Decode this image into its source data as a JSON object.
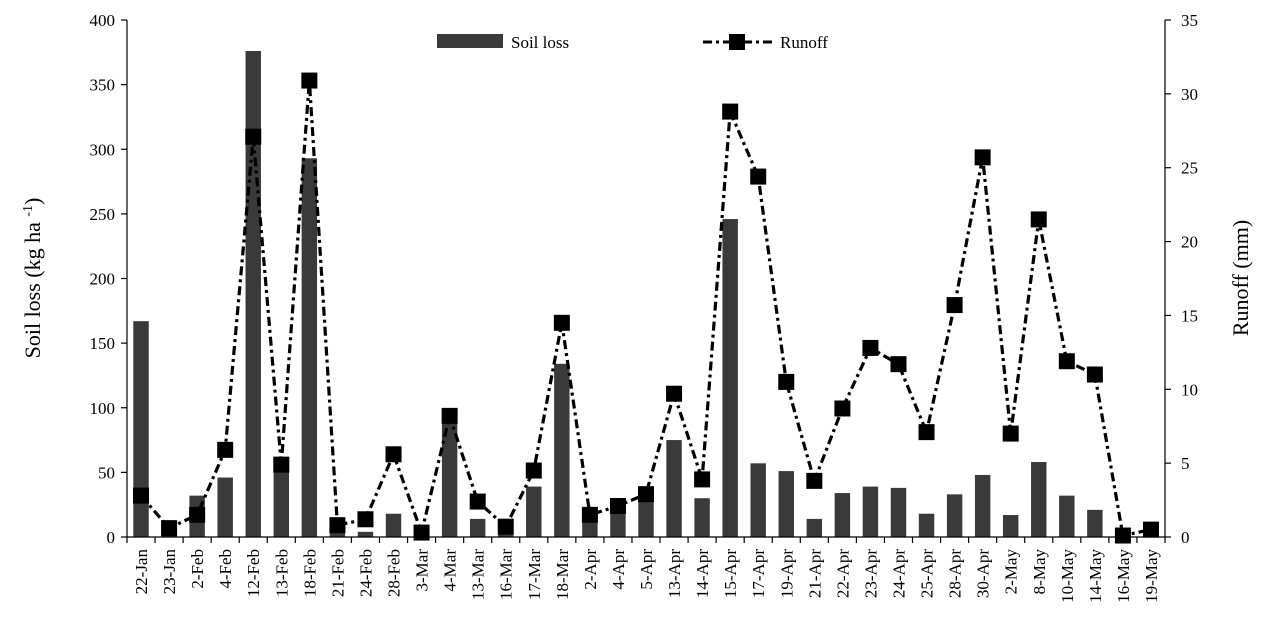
{
  "chart_data": {
    "type": "bar+line",
    "categories": [
      "22-Jan",
      "23-Jan",
      "2-Feb",
      "4-Feb",
      "12-Feb",
      "13-Feb",
      "18-Feb",
      "21-Feb",
      "24-Feb",
      "28-Feb",
      "3-Mar",
      "4-Mar",
      "13-Mar",
      "16-Mar",
      "17-Mar",
      "18-Mar",
      "2-Apr",
      "4-Apr",
      "5-Apr",
      "13-Apr",
      "14-Apr",
      "15-Apr",
      "17-Apr",
      "19-Apr",
      "21-Apr",
      "22-Apr",
      "23-Apr",
      "24-Apr",
      "25-Apr",
      "28-Apr",
      "30-Apr",
      "2-May",
      "8-May",
      "10-May",
      "14-May",
      "16-May",
      "19-May"
    ],
    "series": [
      {
        "name": "Soil loss",
        "kind": "bar",
        "axis": "left",
        "color": "#3a3a3a",
        "values": [
          167,
          3,
          32,
          46,
          376,
          57,
          293,
          11,
          4,
          18,
          3,
          97,
          14,
          8,
          39,
          134,
          17,
          24,
          34,
          75,
          30,
          246,
          57,
          51,
          14,
          34,
          39,
          38,
          18,
          33,
          48,
          17,
          58,
          32,
          21,
          1,
          6
        ]
      },
      {
        "name": "Runoff",
        "kind": "line",
        "axis": "right",
        "color": "#000000",
        "values": [
          2.8,
          0.6,
          1.5,
          5.9,
          27.1,
          4.9,
          30.9,
          0.8,
          1.2,
          5.6,
          0.3,
          8.2,
          2.4,
          0.7,
          4.5,
          14.5,
          1.5,
          2.1,
          2.9,
          9.7,
          3.9,
          28.8,
          24.4,
          10.5,
          3.8,
          8.7,
          12.8,
          11.7,
          7.1,
          15.7,
          25.7,
          7.0,
          21.5,
          11.9,
          11.0,
          0.1,
          0.5
        ]
      }
    ],
    "ylabel": "Soil loss (kg ha ",
    "ylabel_sup": "-1",
    "ylabel_close": ")",
    "y2label": "Runoff (mm)",
    "ylim": [
      0,
      400
    ],
    "y2lim": [
      0,
      35
    ],
    "yticks": [
      "0",
      "50",
      "100",
      "150",
      "200",
      "250",
      "300",
      "350",
      "400"
    ],
    "y2ticks": [
      "0",
      "5",
      "10",
      "15",
      "20",
      "25",
      "30",
      "35"
    ],
    "legend_position": "top",
    "grid": false
  }
}
